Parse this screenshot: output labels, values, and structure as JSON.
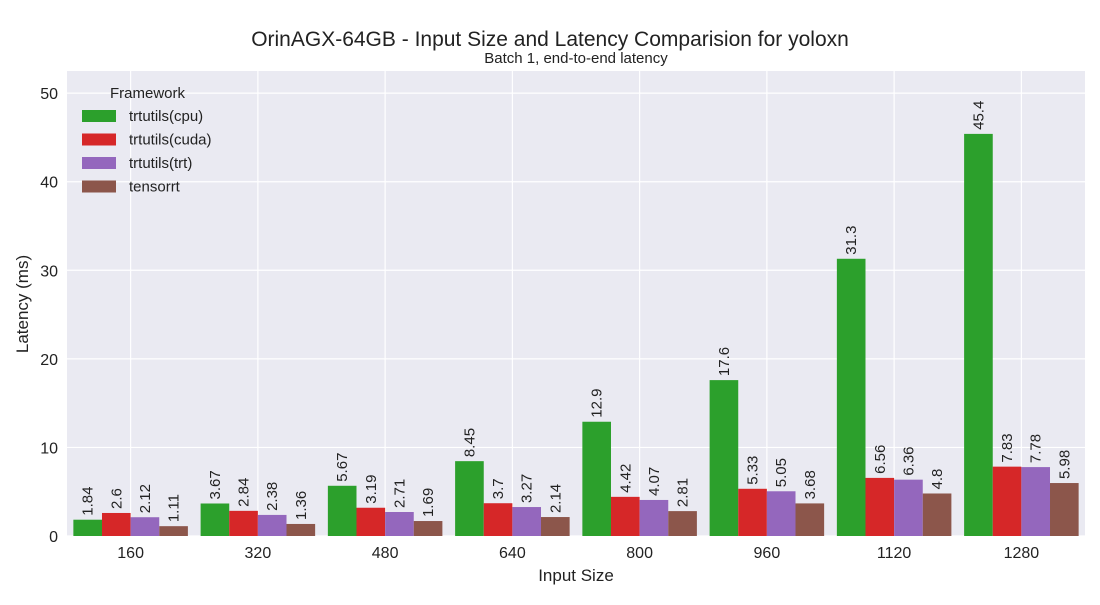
{
  "chart_data": {
    "type": "bar",
    "title": "OrinAGX-64GB - Input Size and Latency Comparision for yoloxn",
    "subtitle": "Batch 1, end-to-end latency",
    "xlabel": "Input Size",
    "ylabel": "Latency (ms)",
    "categories": [
      "160",
      "320",
      "480",
      "640",
      "800",
      "960",
      "1120",
      "1280"
    ],
    "ylim": [
      0,
      52.5
    ],
    "yticks": [
      0,
      10,
      20,
      30,
      40,
      50
    ],
    "grid": true,
    "legend": {
      "title": "Framework",
      "placement": "top-left"
    },
    "series": [
      {
        "name": "trtutils(cpu)",
        "color": "#2ca02c",
        "values": [
          1.84,
          3.67,
          5.67,
          8.45,
          12.9,
          17.6,
          31.3,
          45.4
        ],
        "labels": [
          "1.84",
          "3.67",
          "5.67",
          "8.45",
          "12.9",
          "17.6",
          "31.3",
          "45.4"
        ]
      },
      {
        "name": "trtutils(cuda)",
        "color": "#d62728",
        "values": [
          2.6,
          2.84,
          3.19,
          3.7,
          4.42,
          5.33,
          6.56,
          7.83
        ],
        "labels": [
          "2.6",
          "2.84",
          "3.19",
          "3.7",
          "4.42",
          "5.33",
          "6.56",
          "7.83"
        ]
      },
      {
        "name": "trtutils(trt)",
        "color": "#9467bd",
        "values": [
          2.12,
          2.38,
          2.71,
          3.27,
          4.07,
          5.05,
          6.36,
          7.78
        ],
        "labels": [
          "2.12",
          "2.38",
          "2.71",
          "3.27",
          "4.07",
          "5.05",
          "6.36",
          "7.78"
        ]
      },
      {
        "name": "tensorrt",
        "color": "#8c564b",
        "values": [
          1.11,
          1.36,
          1.69,
          2.14,
          2.81,
          3.68,
          4.8,
          5.98
        ],
        "labels": [
          "1.11",
          "1.36",
          "1.69",
          "2.14",
          "2.81",
          "3.68",
          "4.8",
          "5.98"
        ]
      }
    ],
    "style": {
      "plot_background": "#eaeaf2",
      "grid_color": "#ffffff"
    }
  }
}
